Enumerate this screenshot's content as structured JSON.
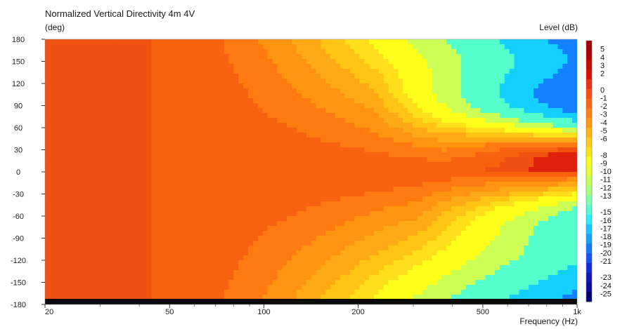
{
  "chart_data": {
    "type": "heatmap",
    "title": "Normalized Vertical Directivity 4m 4V",
    "ylabel": "(deg)",
    "xlabel": "Frequency (Hz)",
    "colorbar_label": "Level (dB)",
    "x_scale": "log",
    "xlim": [
      20,
      1000
    ],
    "ylim": [
      -180,
      180
    ],
    "x_ticks": [
      {
        "value": 20,
        "label": "20"
      },
      {
        "value": 50,
        "label": "50"
      },
      {
        "value": 100,
        "label": "100"
      },
      {
        "value": 200,
        "label": "200"
      },
      {
        "value": 500,
        "label": "500"
      },
      {
        "value": 1000,
        "label": "1k"
      }
    ],
    "y_ticks": [
      180,
      150,
      120,
      90,
      60,
      30,
      0,
      -30,
      -60,
      -90,
      -120,
      -150,
      -180
    ],
    "colorbar_ticks": [
      5,
      4,
      3,
      2,
      0,
      -1,
      -2,
      -3,
      -4,
      -5,
      -6,
      -8,
      -9,
      -10,
      -11,
      -12,
      -13,
      -15,
      -16,
      -17,
      -18,
      -19,
      -20,
      -21,
      -23,
      -24,
      -25
    ],
    "colorbar_colors": [
      "#a30000",
      "#b80000",
      "#cc0a00",
      "#e01000",
      "#f03010",
      "#ff4a14",
      "#ff6414",
      "#ff8010",
      "#ff9a10",
      "#ffb414",
      "#ffcc14",
      "#ffe414",
      "#ffff14",
      "#e8ff28",
      "#c8ff50",
      "#a8ff7a",
      "#80ffa8",
      "#50ffd0",
      "#28f0ff",
      "#14c8ff",
      "#14a0ff",
      "#1478ff",
      "#1450ff",
      "#1428e8",
      "#1414c0",
      "#0a0aa0",
      "#000070"
    ],
    "bands": [
      {
        "level": 0,
        "color": "#f05010"
      },
      {
        "level": -1,
        "color": "#f8620e"
      },
      {
        "level": -2,
        "color": "#ff7a10"
      },
      {
        "level": -3,
        "color": "#ff9410"
      },
      {
        "level": -4,
        "color": "#ffaa14"
      },
      {
        "level": -5,
        "color": "#ffc414"
      },
      {
        "level": -6,
        "color": "#ffde1a"
      },
      {
        "level": -8,
        "color": "#ffff1a"
      },
      {
        "level": -10,
        "color": "#ccff55"
      },
      {
        "level": -13,
        "color": "#55ffcc"
      },
      {
        "level": -16,
        "color": "#14d0ff"
      },
      {
        "level": -19,
        "color": "#1480ff"
      }
    ],
    "grid": false,
    "legend_position": "right"
  }
}
